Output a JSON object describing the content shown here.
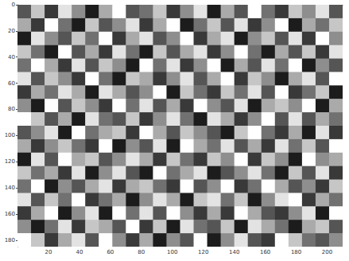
{
  "chart_data": {
    "type": "heatmap",
    "xlim": [
      0,
      210
    ],
    "xticks": [
      20,
      40,
      60,
      80,
      100,
      120,
      140,
      160,
      180,
      200
    ],
    "ylim": [
      0,
      185
    ],
    "yticks": [
      0,
      20,
      40,
      60,
      80,
      100,
      120,
      140,
      160,
      180
    ],
    "zlim": [
      0,
      9
    ],
    "grid": false,
    "cells": [
      [
        3,
        7,
        2,
        8,
        5,
        1,
        6,
        9,
        3,
        4,
        7,
        2,
        5,
        8,
        1,
        6,
        3,
        9,
        4,
        2,
        7,
        5,
        8,
        3
      ],
      [
        6,
        2,
        9,
        4,
        1,
        7,
        3,
        5,
        8,
        2,
        6,
        9,
        1,
        4,
        7,
        3,
        8,
        2,
        5,
        9,
        1,
        6,
        4,
        7
      ],
      [
        1,
        8,
        5,
        3,
        7,
        4,
        9,
        2,
        6,
        8,
        3,
        5,
        9,
        2,
        6,
        8,
        1,
        5,
        7,
        3,
        8,
        2,
        9,
        5
      ],
      [
        7,
        4,
        1,
        9,
        3,
        6,
        2,
        8,
        4,
        1,
        7,
        3,
        6,
        8,
        2,
        5,
        9,
        4,
        1,
        6,
        3,
        7,
        2,
        8
      ],
      [
        4,
        9,
        6,
        2,
        8,
        3,
        7,
        5,
        1,
        9,
        4,
        8,
        2,
        5,
        9,
        1,
        6,
        3,
        8,
        4,
        9,
        1,
        5,
        3
      ],
      [
        8,
        3,
        7,
        5,
        2,
        9,
        4,
        1,
        7,
        6,
        2,
        5,
        8,
        3,
        6,
        9,
        2,
        7,
        5,
        1,
        6,
        8,
        3,
        9
      ],
      [
        2,
        6,
        4,
        8,
        6,
        1,
        8,
        6,
        3,
        5,
        9,
        1,
        7,
        4,
        2,
        7,
        4,
        8,
        3,
        9,
        2,
        4,
        7,
        1
      ],
      [
        5,
        1,
        9,
        3,
        7,
        5,
        2,
        9,
        4,
        8,
        3,
        6,
        2,
        9,
        5,
        3,
        8,
        1,
        6,
        7,
        5,
        9,
        1,
        6
      ],
      [
        9,
        7,
        3,
        6,
        1,
        8,
        4,
        3,
        7,
        2,
        5,
        8,
        4,
        1,
        8,
        6,
        2,
        5,
        9,
        3,
        8,
        3,
        6,
        4
      ],
      [
        3,
        5,
        8,
        1,
        9,
        4,
        6,
        7,
        2,
        9,
        6,
        3,
        7,
        5,
        3,
        1,
        7,
        9,
        4,
        2,
        6,
        1,
        8,
        2
      ],
      [
        6,
        2,
        5,
        7,
        4,
        2,
        9,
        1,
        5,
        3,
        8,
        1,
        9,
        6,
        4,
        8,
        3,
        6,
        2,
        8,
        4,
        7,
        3,
        9
      ],
      [
        1,
        8,
        3,
        9,
        6,
        7,
        3,
        5,
        8,
        6,
        2,
        7,
        4,
        2,
        7,
        5,
        9,
        2,
        7,
        5,
        1,
        9,
        5,
        6
      ],
      [
        7,
        4,
        6,
        2,
        8,
        1,
        5,
        8,
        3,
        1,
        9,
        4,
        6,
        8,
        1,
        3,
        5,
        8,
        4,
        1,
        7,
        3,
        8,
        2
      ],
      [
        4,
        9,
        1,
        5,
        3,
        6,
        8,
        2,
        6,
        7,
        4,
        2,
        9,
        3,
        5,
        9,
        2,
        4,
        9,
        6,
        3,
        5,
        2,
        7
      ],
      [
        8,
        3,
        7,
        4,
        9,
        2,
        4,
        6,
        1,
        5,
        8,
        6,
        1,
        7,
        8,
        4,
        7,
        1,
        5,
        8,
        9,
        2,
        6,
        4
      ],
      [
        2,
        6,
        9,
        1,
        5,
        8,
        1,
        9,
        4,
        8,
        3,
        9,
        5,
        2,
        6,
        2,
        9,
        6,
        3,
        2,
        5,
        8,
        1,
        9
      ],
      [
        5,
        1,
        4,
        8,
        2,
        7,
        6,
        3,
        9,
        2,
        7,
        1,
        8,
        4,
        3,
        7,
        1,
        8,
        6,
        4,
        1,
        6,
        7,
        3
      ],
      [
        9,
        7,
        2,
        6,
        8,
        3,
        9,
        5,
        2,
        6,
        1,
        5,
        3,
        9,
        1,
        5,
        8,
        3,
        2,
        9,
        7,
        4,
        3,
        5
      ]
    ]
  }
}
